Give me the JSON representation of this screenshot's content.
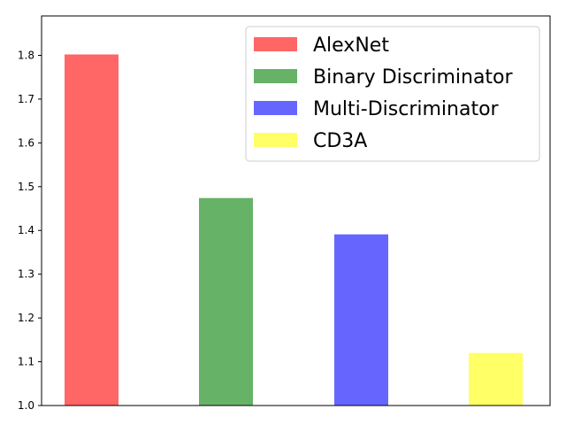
{
  "chart_data": {
    "type": "bar",
    "categories": [
      "AlexNet",
      "Binary Discriminator",
      "Multi-Discriminator",
      "CD3A"
    ],
    "values": [
      1.802,
      1.474,
      1.391,
      1.12
    ],
    "colors": [
      "#ff6666",
      "#66b266",
      "#6666ff",
      "#ffff66"
    ],
    "ylim": [
      1.0,
      1.89
    ],
    "yticks": [
      "1.0",
      "1.1",
      "1.2",
      "1.3",
      "1.4",
      "1.5",
      "1.6",
      "1.7",
      "1.8"
    ],
    "legend": {
      "placement": "top-right",
      "entries": [
        "AlexNet",
        "Binary Discriminator",
        "Multi-Discriminator",
        "CD3A"
      ]
    },
    "grid": false
  }
}
